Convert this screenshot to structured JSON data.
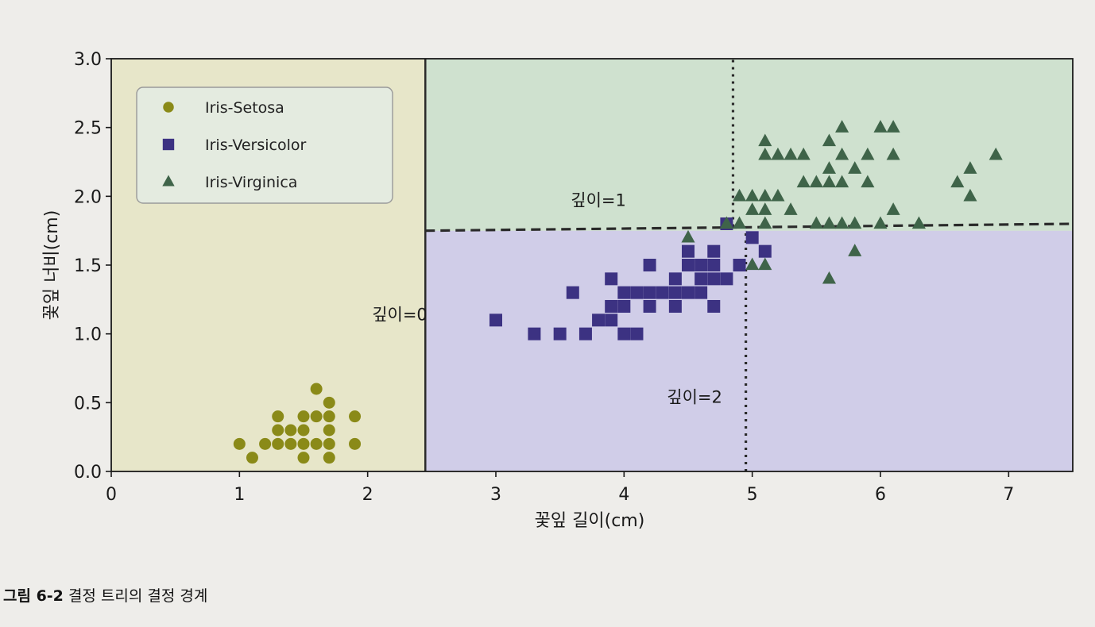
{
  "chart_data": {
    "type": "scatter",
    "xlabel": "꽃잎 길이(cm)",
    "ylabel": "꽃잎 너비(cm)",
    "xlim": [
      0,
      7.5
    ],
    "ylim": [
      0,
      3.0
    ],
    "x_ticks": [
      0,
      1,
      2,
      3,
      4,
      5,
      6,
      7
    ],
    "y_ticks": [
      0.0,
      0.5,
      1.0,
      1.5,
      2.0,
      2.5,
      3.0
    ],
    "x_tick_labels": [
      "0",
      "1",
      "2",
      "3",
      "4",
      "5",
      "6",
      "7"
    ],
    "y_tick_labels": [
      "0.0",
      "0.5",
      "1.0",
      "1.5",
      "2.0",
      "2.5",
      "3.0"
    ],
    "legend_position": "top-left",
    "regions": [
      {
        "x": [
          0,
          2.45
        ],
        "y": [
          0,
          3.0
        ],
        "color": "#e7e6c9"
      },
      {
        "x": [
          2.45,
          7.5
        ],
        "y": [
          0,
          1.75
        ],
        "color": "#d0cde8"
      },
      {
        "x": [
          2.45,
          7.5
        ],
        "y": [
          1.75,
          3.0
        ],
        "color": "#cfe1cf"
      }
    ],
    "boundaries": [
      {
        "name": "depth-0",
        "style": "solid",
        "x": [
          2.45,
          2.45
        ],
        "y": [
          0,
          3.0
        ],
        "label": "깊이=0",
        "label_at": [
          2.25,
          1.1
        ]
      },
      {
        "name": "depth-1",
        "style": "dashed",
        "x": [
          2.45,
          7.5
        ],
        "y": [
          1.75,
          1.8
        ],
        "label": "깊이=1",
        "label_at": [
          3.8,
          1.93
        ]
      },
      {
        "name": "depth-2a",
        "style": "dotted",
        "x": [
          4.95,
          4.95
        ],
        "y": [
          0,
          1.77
        ],
        "label": "깊이=2",
        "label_at": [
          4.55,
          0.5
        ]
      },
      {
        "name": "depth-2b",
        "style": "dotted",
        "x": [
          4.85,
          4.85
        ],
        "y": [
          1.78,
          3.0
        ],
        "label": "",
        "label_at": null
      }
    ],
    "series": [
      {
        "name": "Iris-Setosa",
        "marker": "circle",
        "color": "#8a8a18",
        "points": [
          [
            1.0,
            0.2
          ],
          [
            1.1,
            0.1
          ],
          [
            1.2,
            0.2
          ],
          [
            1.3,
            0.2
          ],
          [
            1.3,
            0.3
          ],
          [
            1.3,
            0.4
          ],
          [
            1.4,
            0.2
          ],
          [
            1.4,
            0.3
          ],
          [
            1.5,
            0.1
          ],
          [
            1.5,
            0.2
          ],
          [
            1.5,
            0.3
          ],
          [
            1.5,
            0.4
          ],
          [
            1.6,
            0.2
          ],
          [
            1.6,
            0.4
          ],
          [
            1.6,
            0.6
          ],
          [
            1.7,
            0.1
          ],
          [
            1.7,
            0.2
          ],
          [
            1.7,
            0.3
          ],
          [
            1.7,
            0.4
          ],
          [
            1.7,
            0.5
          ],
          [
            1.9,
            0.2
          ],
          [
            1.9,
            0.4
          ]
        ]
      },
      {
        "name": "Iris-Versicolor",
        "marker": "square",
        "color": "#3c3282",
        "points": [
          [
            3.0,
            1.1
          ],
          [
            3.3,
            1.0
          ],
          [
            3.5,
            1.0
          ],
          [
            3.6,
            1.3
          ],
          [
            3.7,
            1.0
          ],
          [
            3.8,
            1.1
          ],
          [
            3.9,
            1.1
          ],
          [
            3.9,
            1.2
          ],
          [
            3.9,
            1.4
          ],
          [
            4.0,
            1.0
          ],
          [
            4.0,
            1.2
          ],
          [
            4.0,
            1.3
          ],
          [
            4.1,
            1.0
          ],
          [
            4.1,
            1.3
          ],
          [
            4.2,
            1.2
          ],
          [
            4.2,
            1.3
          ],
          [
            4.2,
            1.5
          ],
          [
            4.3,
            1.3
          ],
          [
            4.4,
            1.2
          ],
          [
            4.4,
            1.3
          ],
          [
            4.4,
            1.4
          ],
          [
            4.5,
            1.3
          ],
          [
            4.5,
            1.5
          ],
          [
            4.5,
            1.6
          ],
          [
            4.6,
            1.3
          ],
          [
            4.6,
            1.4
          ],
          [
            4.6,
            1.5
          ],
          [
            4.7,
            1.2
          ],
          [
            4.7,
            1.4
          ],
          [
            4.7,
            1.5
          ],
          [
            4.7,
            1.6
          ],
          [
            4.8,
            1.4
          ],
          [
            4.8,
            1.8
          ],
          [
            4.9,
            1.5
          ],
          [
            5.0,
            1.7
          ],
          [
            5.1,
            1.6
          ]
        ]
      },
      {
        "name": "Iris-Virginica",
        "marker": "triangle",
        "color": "#3f6449",
        "points": [
          [
            4.5,
            1.7
          ],
          [
            4.8,
            1.8
          ],
          [
            4.9,
            1.8
          ],
          [
            4.9,
            2.0
          ],
          [
            5.0,
            1.5
          ],
          [
            5.0,
            1.9
          ],
          [
            5.0,
            2.0
          ],
          [
            5.1,
            1.5
          ],
          [
            5.1,
            1.8
          ],
          [
            5.1,
            1.9
          ],
          [
            5.1,
            2.0
          ],
          [
            5.1,
            2.3
          ],
          [
            5.1,
            2.4
          ],
          [
            5.2,
            2.0
          ],
          [
            5.2,
            2.3
          ],
          [
            5.3,
            1.9
          ],
          [
            5.3,
            2.3
          ],
          [
            5.4,
            2.1
          ],
          [
            5.4,
            2.3
          ],
          [
            5.5,
            1.8
          ],
          [
            5.5,
            2.1
          ],
          [
            5.6,
            1.4
          ],
          [
            5.6,
            1.8
          ],
          [
            5.6,
            2.1
          ],
          [
            5.6,
            2.2
          ],
          [
            5.6,
            2.4
          ],
          [
            5.7,
            1.8
          ],
          [
            5.7,
            2.1
          ],
          [
            5.7,
            2.3
          ],
          [
            5.7,
            2.5
          ],
          [
            5.8,
            1.6
          ],
          [
            5.8,
            1.8
          ],
          [
            5.8,
            2.2
          ],
          [
            5.9,
            2.1
          ],
          [
            5.9,
            2.3
          ],
          [
            6.0,
            1.8
          ],
          [
            6.0,
            2.5
          ],
          [
            6.1,
            1.9
          ],
          [
            6.1,
            2.3
          ],
          [
            6.1,
            2.5
          ],
          [
            6.3,
            1.8
          ],
          [
            6.6,
            2.1
          ],
          [
            6.7,
            2.0
          ],
          [
            6.7,
            2.2
          ],
          [
            6.9,
            2.3
          ]
        ]
      }
    ]
  },
  "caption": {
    "label": "그림 6-2",
    "text": "결정 트리의 결정 경계"
  }
}
